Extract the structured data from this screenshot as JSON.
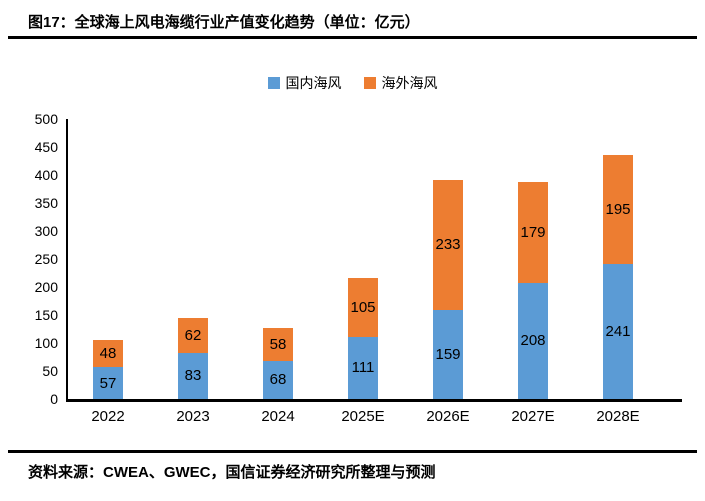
{
  "header": {
    "title": "图17：全球海上风电海缆行业产值变化趋势（单位：亿元）"
  },
  "footer": {
    "source": "资料来源：CWEA、GWEC，国信证券经济研究所整理与预测"
  },
  "chart_data": {
    "type": "bar",
    "stacked": true,
    "title": "全球海上风电海缆行业产值变化趋势",
    "unit_label": "亿元",
    "categories": [
      "2022",
      "2023",
      "2024",
      "2025E",
      "2026E",
      "2027E",
      "2028E"
    ],
    "series": [
      {
        "name": "国内海风",
        "color": "#5B9BD5",
        "values": [
          57,
          83,
          68,
          111,
          159,
          208,
          241
        ]
      },
      {
        "name": "海外海风",
        "color": "#ED7D31",
        "values": [
          48,
          62,
          58,
          105,
          233,
          179,
          195
        ]
      }
    ],
    "totals": [
      105,
      145,
      126,
      216,
      392,
      387,
      436
    ],
    "xlabel": "",
    "ylabel": "",
    "ylim": [
      0,
      500
    ],
    "ytick_step": 50,
    "legend_position": "top",
    "grid": false,
    "axis_color": "#000000"
  }
}
